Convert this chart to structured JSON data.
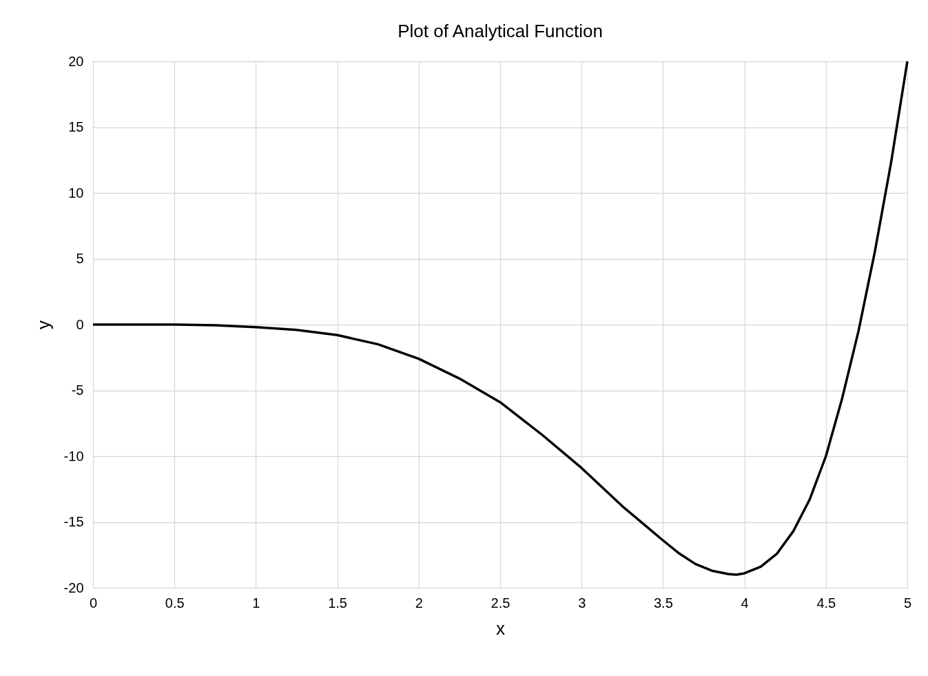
{
  "chart_data": {
    "type": "line",
    "title": "Plot of Analytical Function",
    "xlabel": "x",
    "ylabel": "y",
    "x": [
      0,
      0.25,
      0.5,
      0.75,
      1,
      1.25,
      1.5,
      1.75,
      2,
      2.25,
      2.5,
      2.75,
      3,
      3.25,
      3.5,
      3.6,
      3.7,
      3.8,
      3.9,
      3.95,
      4,
      4.1,
      4.2,
      4.3,
      4.4,
      4.5,
      4.6,
      4.7,
      4.8,
      4.9,
      5
    ],
    "series": [
      {
        "color": "#000000",
        "values": [
          0,
          0,
          0,
          -0.05,
          -0.2,
          -0.4,
          -0.8,
          -1.5,
          -2.6,
          -4.1,
          -5.9,
          -8.3,
          -10.9,
          -13.8,
          -16.4,
          -17.4,
          -18.2,
          -18.7,
          -18.95,
          -19,
          -18.9,
          -18.4,
          -17.4,
          -15.7,
          -13.3,
          -10,
          -5.6,
          -0.5,
          5.5,
          12.3,
          20
        ]
      }
    ],
    "xlim": [
      0,
      5
    ],
    "xticks": [
      0,
      0.5,
      1,
      1.5,
      2,
      2.5,
      3,
      3.5,
      4,
      4.5,
      5
    ],
    "ylim": [
      -20,
      20
    ],
    "yticks": [
      -20,
      -15,
      -10,
      -5,
      0,
      5,
      10,
      15,
      20
    ],
    "grid": true,
    "marker": "none",
    "line_style": "solid"
  }
}
